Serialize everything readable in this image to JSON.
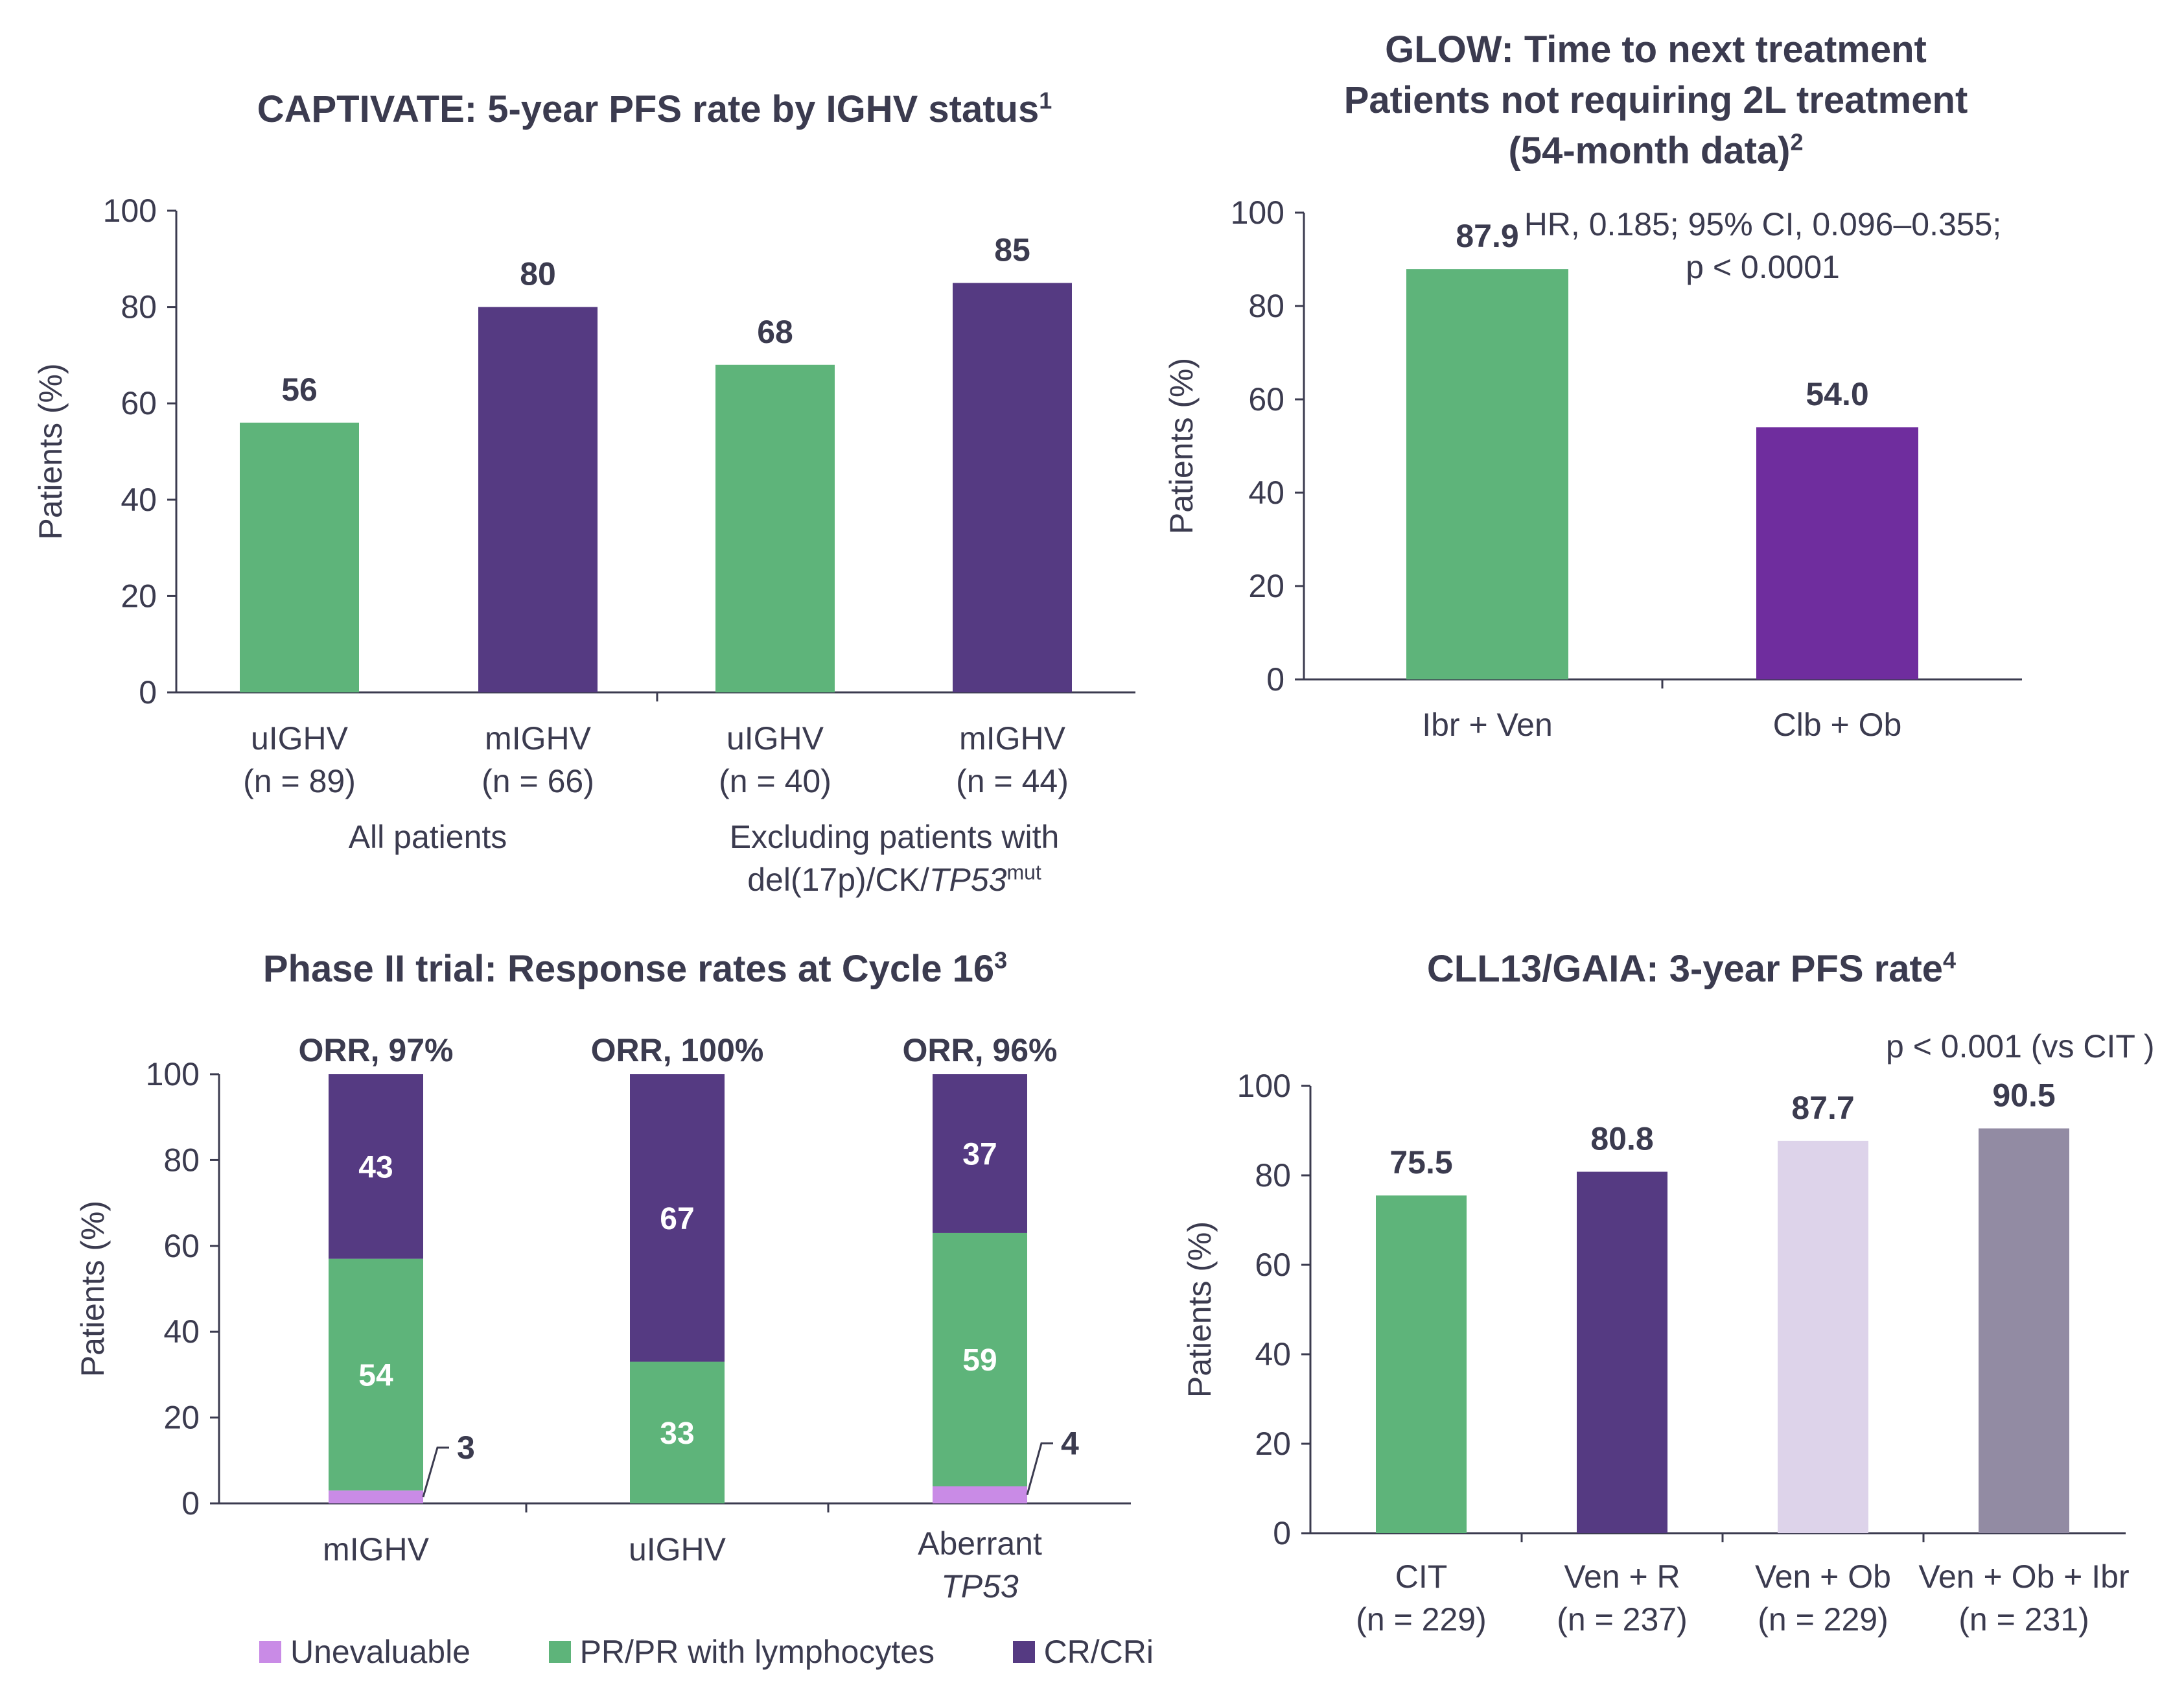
{
  "colors": {
    "green": "#5eb47a",
    "purple": "#553a82",
    "violet": "#6f2d9e",
    "lavender": "#c98be6",
    "light_lilac": "#ddd3ea",
    "gray_purple": "#928ba3",
    "axis": "#3b3b4f",
    "text": "#3b3b4f"
  },
  "panels": {
    "captivate": {
      "title": "CAPTIVATE: 5-year PFS rate by IGHV status",
      "title_sup": "1",
      "groups": {
        "all": "All patients",
        "excl_line1": "Excluding patients with",
        "excl_line2_a": "del(17p)/CK/",
        "excl_line2_b": "TP53",
        "excl_line2_sup": "mut"
      },
      "bar_labels": [
        {
          "name": "uIGHV",
          "n": "(n = 89)"
        },
        {
          "name": "mIGHV",
          "n": "(n = 66)"
        },
        {
          "name": "uIGHV",
          "n": "(n =  40)"
        },
        {
          "name": "mIGHV",
          "n": "(n =  44)"
        }
      ]
    },
    "glow": {
      "title_line1": "GLOW: Time to next treatment",
      "title_line2": "Patients not requiring 2L treatment",
      "title_line3": "(54-month data)",
      "title_sup": "2",
      "note_line1": "HR, 0.185; 95% CI, 0.096–0.355;",
      "note_line2": "p < 0.0001",
      "bar_labels": [
        "Ibr + Ven",
        "Clb + Ob"
      ]
    },
    "phase2": {
      "title": "Phase II trial: Response rates at Cycle 16",
      "title_sup": "3",
      "bar_labels": [
        {
          "line1": "mIGHV",
          "line2": ""
        },
        {
          "line1": "uIGHV",
          "line2": ""
        },
        {
          "line1": "Aberrant",
          "line2": "TP53"
        }
      ],
      "legend": [
        "Unevaluable",
        "PR/PR with lymphocytes",
        "CR/CRi"
      ]
    },
    "cll13": {
      "title": "CLL13/GAIA: 3-year PFS rate",
      "title_sup": "4",
      "note": "p < 0.001 (vs CIT )",
      "bar_labels": [
        {
          "name": "CIT",
          "n": "(n = 229)"
        },
        {
          "name": "Ven + R",
          "n": "(n = 237)"
        },
        {
          "name": "Ven + Ob",
          "n": "(n = 229)"
        },
        {
          "name": "Ven + Ob + Ibr",
          "n": "(n = 231)"
        }
      ]
    }
  },
  "chart_data": [
    {
      "id": "captivate",
      "type": "bar",
      "title": "CAPTIVATE: 5-year PFS rate by IGHV status",
      "ylabel": "Patients (%)",
      "ylim": [
        0,
        100
      ],
      "yticks": [
        0,
        20,
        40,
        60,
        80,
        100
      ],
      "categories": [
        "uIGHV",
        "mIGHV",
        "uIGHV",
        "mIGHV"
      ],
      "values": [
        56,
        80,
        68,
        85
      ],
      "value_labels": [
        "56",
        "80",
        "68",
        "85"
      ],
      "colors": [
        "#5eb47a",
        "#553a82",
        "#5eb47a",
        "#553a82"
      ]
    },
    {
      "id": "glow",
      "type": "bar",
      "title": "GLOW: Time to next treatment",
      "ylabel": "Patients (%)",
      "ylim": [
        0,
        100
      ],
      "yticks": [
        0,
        20,
        40,
        60,
        80,
        100
      ],
      "categories": [
        "Ibr + Ven",
        "Clb + Ob"
      ],
      "values": [
        87.9,
        54.0
      ],
      "value_labels": [
        "87.9",
        "54.0"
      ],
      "colors": [
        "#5eb47a",
        "#6f2d9e"
      ]
    },
    {
      "id": "phase2",
      "type": "bar",
      "stacked": true,
      "title": "Phase II trial: Response rates at Cycle 16",
      "ylabel": "Patients (%)",
      "ylim": [
        0,
        100
      ],
      "yticks": [
        0,
        20,
        40,
        60,
        80,
        100
      ],
      "categories": [
        "mIGHV",
        "uIGHV",
        "Aberrant TP53"
      ],
      "top_labels": [
        "ORR, 97%",
        "ORR, 100%",
        "ORR, 96%"
      ],
      "series": [
        {
          "name": "Unevaluable",
          "values": [
            3,
            0,
            4
          ],
          "color": "#c98be6"
        },
        {
          "name": "PR/PR with lymphocytes",
          "values": [
            54,
            33,
            59
          ],
          "color": "#5eb47a"
        },
        {
          "name": "CR/CRi",
          "values": [
            43,
            67,
            37
          ],
          "color": "#553a82"
        }
      ]
    },
    {
      "id": "cll13",
      "type": "bar",
      "title": "CLL13/GAIA: 3-year PFS rate",
      "ylabel": "Patients (%)",
      "ylim": [
        0,
        100
      ],
      "yticks": [
        0,
        20,
        40,
        60,
        80,
        100
      ],
      "categories": [
        "CIT",
        "Ven + R",
        "Ven + Ob",
        "Ven + Ob + Ibr"
      ],
      "values": [
        75.5,
        80.8,
        87.7,
        90.5
      ],
      "value_labels": [
        "75.5",
        "80.8",
        "87.7",
        "90.5"
      ],
      "colors": [
        "#5eb47a",
        "#553a82",
        "#ddd3ea",
        "#928ba3"
      ]
    }
  ]
}
